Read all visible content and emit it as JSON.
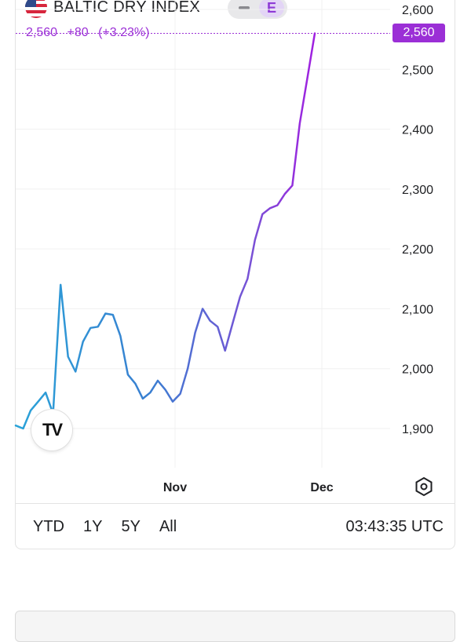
{
  "header": {
    "symbol_name": "BALTIC DRY INDEX",
    "exchange_badge": "E",
    "flag_icon": "us-flag-icon"
  },
  "quote": {
    "last": "2,560",
    "change": "+80",
    "change_pct": "(+3.23%)",
    "color": "#9b2fd6"
  },
  "price_tag": "2,560",
  "logo_text": "TV",
  "range_buttons": [
    "YTD",
    "1Y",
    "5Y",
    "All"
  ],
  "clock": "03:43:35 UTC",
  "chart_data": {
    "type": "line",
    "title": "BALTIC DRY INDEX",
    "xlabel": "",
    "ylabel": "",
    "x_ticks": [
      "Nov",
      "Dec"
    ],
    "y_ticks": [
      "1,900",
      "2,000",
      "2,100",
      "2,200",
      "2,300",
      "2,400",
      "2,500",
      "2,600"
    ],
    "ylim": [
      1880,
      2620
    ],
    "grid": true,
    "last_value": 2560,
    "series": [
      {
        "colors": [
          "#2aa3d8",
          "#3a7fd1",
          "#7b4fd6",
          "#a020e0"
        ],
        "values": [
          1905,
          1900,
          1930,
          1945,
          1960,
          1925,
          2140,
          2020,
          1995,
          2045,
          2068,
          2070,
          2092,
          2090,
          2055,
          1990,
          1975,
          1950,
          1960,
          1980,
          1965,
          1945,
          1958,
          2000,
          2060,
          2100,
          2080,
          2070,
          2030,
          2075,
          2120,
          2150,
          2215,
          2258,
          2268,
          2273,
          2292,
          2306,
          2410,
          2485,
          2560
        ]
      }
    ]
  }
}
